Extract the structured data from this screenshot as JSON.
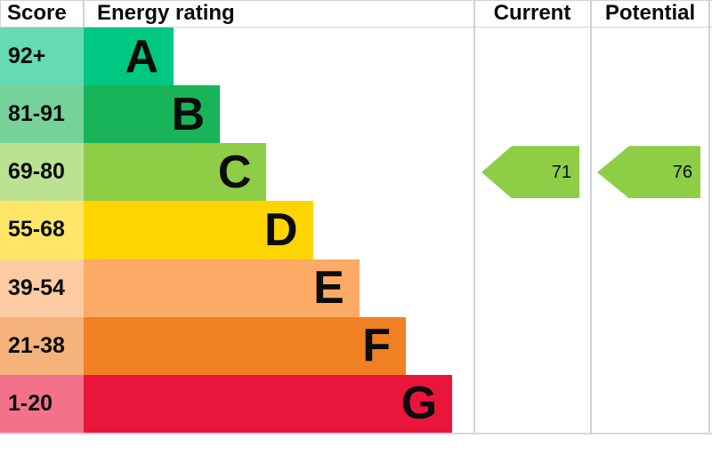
{
  "header": {
    "score": "Score",
    "energy_rating": "Energy rating",
    "current": "Current",
    "potential": "Potential"
  },
  "chart_data": {
    "type": "bar",
    "subtype": "epc-energy-efficiency-rating",
    "title": "Energy rating",
    "legend_position": "none",
    "grid": false,
    "bands": [
      {
        "letter": "A",
        "score_range": "92+",
        "color": "#00c781",
        "score_bg": "#66dab3"
      },
      {
        "letter": "B",
        "score_range": "81-91",
        "color": "#19b459",
        "score_bg": "#75d29b"
      },
      {
        "letter": "C",
        "score_range": "69-80",
        "color": "#8dce46",
        "score_bg": "#bbe290"
      },
      {
        "letter": "D",
        "score_range": "55-68",
        "color": "#ffd500",
        "score_bg": "#ffe666"
      },
      {
        "letter": "E",
        "score_range": "39-54",
        "color": "#fcaa65",
        "score_bg": "#fdcca3"
      },
      {
        "letter": "F",
        "score_range": "21-38",
        "color": "#ef8023",
        "score_bg": "#f5b37b"
      },
      {
        "letter": "G",
        "score_range": "1-20",
        "color": "#e9153b",
        "score_bg": "#f27389"
      }
    ],
    "current": {
      "value": 71,
      "band": "C",
      "arrow_color": "#8dce46"
    },
    "potential": {
      "value": 76,
      "band": "C",
      "arrow_color": "#8dce46"
    }
  }
}
